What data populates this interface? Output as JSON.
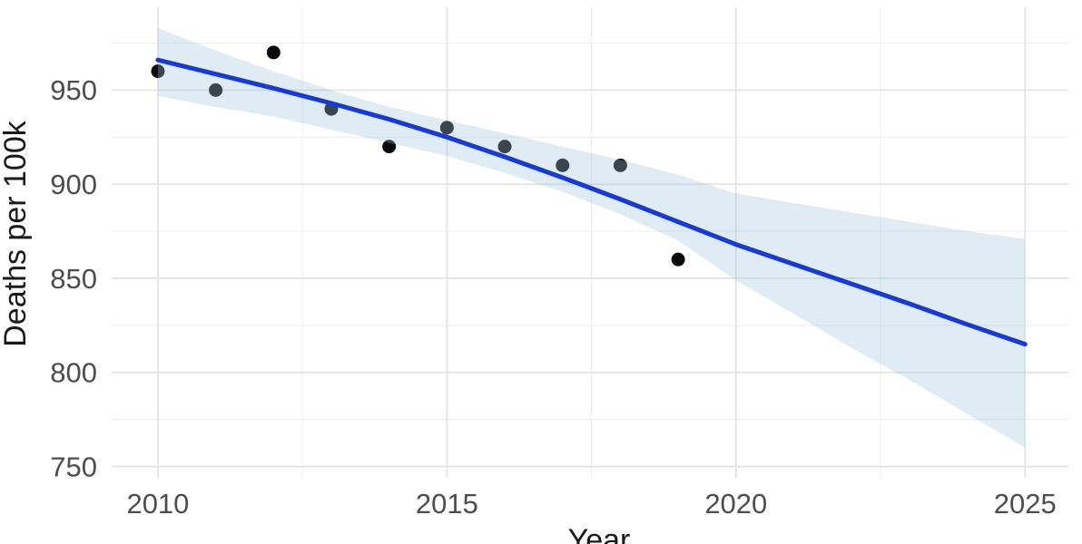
{
  "chart_data": {
    "type": "scatter",
    "title": "",
    "xlabel": "Year",
    "ylabel": "Deaths per 100k",
    "points": {
      "x": [
        2010,
        2011,
        2012,
        2013,
        2014,
        2015,
        2016,
        2017,
        2018,
        2019
      ],
      "y": [
        960,
        950,
        970,
        940,
        920,
        930,
        920,
        910,
        910,
        860
      ]
    },
    "trend_line": {
      "x": [
        2010,
        2011,
        2012,
        2013,
        2014,
        2015,
        2016,
        2017,
        2018,
        2019,
        2020,
        2021,
        2022,
        2023,
        2024,
        2025
      ],
      "y": [
        966,
        958.5,
        951,
        943,
        934.5,
        925,
        914.5,
        903.5,
        892,
        880,
        868,
        857.5,
        847,
        836.5,
        825.5,
        815
      ]
    },
    "confidence_band": {
      "x": [
        2010,
        2011,
        2012,
        2013,
        2014,
        2015,
        2016,
        2017,
        2018,
        2019,
        2020,
        2021,
        2022,
        2023,
        2024,
        2025
      ],
      "upper": [
        983,
        971,
        960,
        950,
        941,
        934,
        927,
        920,
        913,
        905,
        895,
        890,
        885,
        880,
        875,
        871
      ],
      "lower": [
        947,
        941,
        936,
        929,
        922,
        915,
        906,
        896,
        884,
        870,
        849,
        831,
        813,
        796,
        778,
        760
      ]
    },
    "xticks": [
      2010,
      2015,
      2020,
      2025
    ],
    "yticks": [
      750,
      800,
      850,
      900,
      950
    ],
    "x_minor_gridlines": [
      2012.5,
      2017.5,
      2022.5
    ],
    "y_minor_gridlines": [
      775,
      825,
      875,
      925,
      975
    ],
    "xlim": [
      2009.2,
      2025.75
    ],
    "ylim": [
      744,
      994
    ],
    "grid": "on",
    "legend": "none",
    "colors": {
      "point": "#0b0b0b",
      "trend_line": "#1539da",
      "band_fill": "#9cc4de",
      "major_grid": "#e3e3e3",
      "minor_grid": "#efefef",
      "tick_label": "#4d4d4d",
      "axis_title": "#1a1a1a",
      "background": "#ffffff"
    }
  }
}
